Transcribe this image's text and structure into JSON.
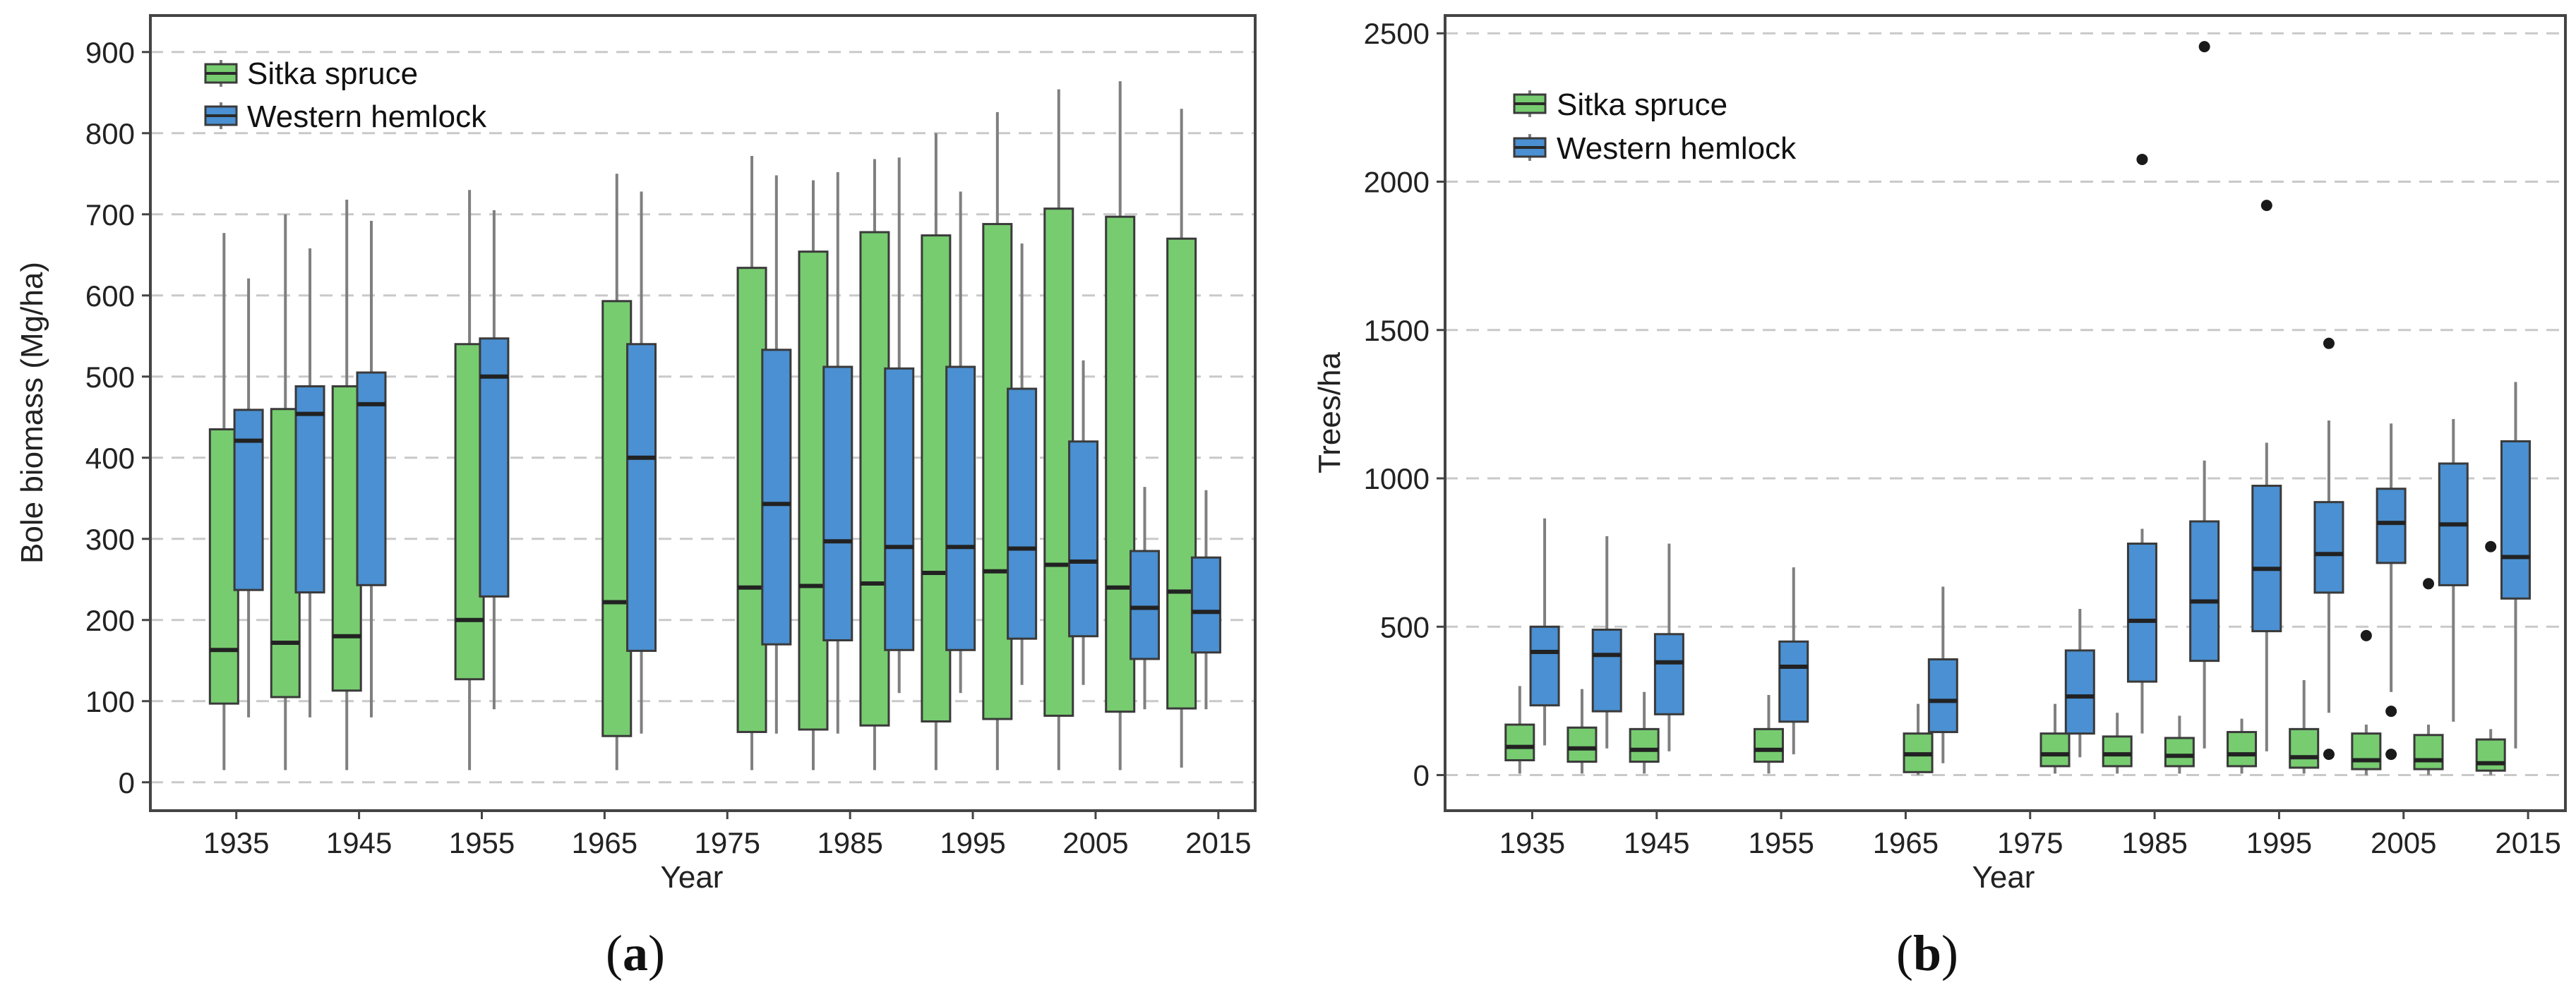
{
  "colors": {
    "sitka_spruce": "#77cc70",
    "western_hemlock": "#4a90d2",
    "box_stroke": "#3a3a3a",
    "whisker": "#7f7f7f",
    "grid": "#c9c9c9",
    "frame": "#444444",
    "outlier": "#1a1a1a"
  },
  "chart_data": [
    {
      "id": "a",
      "type": "box",
      "caption_open": "(",
      "caption_letter": "a",
      "caption_close": ")",
      "xlabel": "Year",
      "ylabel": "Bole biomass (Mg/ha)",
      "xlim": [
        1928,
        2018
      ],
      "ylim": [
        -35,
        945
      ],
      "x_ticks": [
        1935,
        1945,
        1955,
        1965,
        1975,
        1985,
        1995,
        2005,
        2015
      ],
      "y_ticks": [
        0,
        100,
        200,
        300,
        400,
        500,
        600,
        700,
        800,
        900
      ],
      "legend": [
        "Sitka spruce",
        "Western hemlock"
      ],
      "series": [
        {
          "name": "Sitka spruce",
          "boxes": [
            {
              "x": 1934,
              "low": 15,
              "q1": 97,
              "median": 163,
              "q3": 435,
              "high": 677
            },
            {
              "x": 1939,
              "low": 15,
              "q1": 105,
              "median": 172,
              "q3": 460,
              "high": 700
            },
            {
              "x": 1944,
              "low": 15,
              "q1": 113,
              "median": 180,
              "q3": 488,
              "high": 718
            },
            {
              "x": 1954,
              "low": 15,
              "q1": 127,
              "median": 200,
              "q3": 540,
              "high": 730
            },
            {
              "x": 1966,
              "low": 15,
              "q1": 57,
              "median": 222,
              "q3": 593,
              "high": 750
            },
            {
              "x": 1977,
              "low": 15,
              "q1": 62,
              "median": 240,
              "q3": 634,
              "high": 772
            },
            {
              "x": 1982,
              "low": 15,
              "q1": 65,
              "median": 242,
              "q3": 654,
              "high": 742
            },
            {
              "x": 1987,
              "low": 15,
              "q1": 70,
              "median": 245,
              "q3": 678,
              "high": 768
            },
            {
              "x": 1992,
              "low": 15,
              "q1": 75,
              "median": 258,
              "q3": 674,
              "high": 800
            },
            {
              "x": 1997,
              "low": 15,
              "q1": 78,
              "median": 260,
              "q3": 688,
              "high": 826
            },
            {
              "x": 2002,
              "low": 15,
              "q1": 82,
              "median": 268,
              "q3": 707,
              "high": 854
            },
            {
              "x": 2007,
              "low": 15,
              "q1": 87,
              "median": 240,
              "q3": 697,
              "high": 864
            },
            {
              "x": 2012,
              "low": 18,
              "q1": 91,
              "median": 235,
              "q3": 670,
              "high": 830
            }
          ]
        },
        {
          "name": "Western hemlock",
          "boxes": [
            {
              "x": 1936,
              "low": 80,
              "q1": 237,
              "median": 421,
              "q3": 459,
              "high": 621
            },
            {
              "x": 1941,
              "low": 80,
              "q1": 234,
              "median": 454,
              "q3": 488,
              "high": 658
            },
            {
              "x": 1946,
              "low": 80,
              "q1": 243,
              "median": 466,
              "q3": 505,
              "high": 692
            },
            {
              "x": 1956,
              "low": 90,
              "q1": 229,
              "median": 500,
              "q3": 547,
              "high": 705
            },
            {
              "x": 1968,
              "low": 60,
              "q1": 162,
              "median": 400,
              "q3": 540,
              "high": 728
            },
            {
              "x": 1979,
              "low": 60,
              "q1": 170,
              "median": 343,
              "q3": 533,
              "high": 748
            },
            {
              "x": 1984,
              "low": 60,
              "q1": 175,
              "median": 297,
              "q3": 512,
              "high": 752
            },
            {
              "x": 1989,
              "low": 110,
              "q1": 163,
              "median": 290,
              "q3": 510,
              "high": 770
            },
            {
              "x": 1994,
              "low": 110,
              "q1": 163,
              "median": 290,
              "q3": 512,
              "high": 728
            },
            {
              "x": 1999,
              "low": 120,
              "q1": 177,
              "median": 288,
              "q3": 485,
              "high": 664
            },
            {
              "x": 2004,
              "low": 120,
              "q1": 180,
              "median": 272,
              "q3": 420,
              "high": 520
            },
            {
              "x": 2009,
              "low": 90,
              "q1": 152,
              "median": 215,
              "q3": 285,
              "high": 364
            },
            {
              "x": 2014,
              "low": 90,
              "q1": 160,
              "median": 210,
              "q3": 277,
              "high": 360
            }
          ]
        }
      ],
      "outliers": []
    },
    {
      "id": "b",
      "type": "box",
      "caption_open": "(",
      "caption_letter": "b",
      "caption_close": ")",
      "xlabel": "Year",
      "ylabel": "Trees/ha",
      "xlim": [
        1928,
        2018
      ],
      "ylim": [
        -120,
        2560
      ],
      "x_ticks": [
        1935,
        1945,
        1955,
        1965,
        1975,
        1985,
        1995,
        2005,
        2015
      ],
      "y_ticks": [
        0,
        500,
        1000,
        1500,
        2000,
        2500
      ],
      "legend": [
        "Sitka spruce",
        "Western hemlock"
      ],
      "series": [
        {
          "name": "Sitka spruce",
          "boxes": [
            {
              "x": 1934,
              "low": 5,
              "q1": 50,
              "median": 95,
              "q3": 170,
              "high": 300
            },
            {
              "x": 1939,
              "low": 5,
              "q1": 45,
              "median": 90,
              "q3": 160,
              "high": 290
            },
            {
              "x": 1944,
              "low": 5,
              "q1": 45,
              "median": 85,
              "q3": 155,
              "high": 280
            },
            {
              "x": 1954,
              "low": 5,
              "q1": 45,
              "median": 85,
              "q3": 155,
              "high": 270
            },
            {
              "x": 1966,
              "low": 0,
              "q1": 10,
              "median": 70,
              "q3": 140,
              "high": 240
            },
            {
              "x": 1977,
              "low": 5,
              "q1": 30,
              "median": 70,
              "q3": 140,
              "high": 240
            },
            {
              "x": 1982,
              "low": 5,
              "q1": 30,
              "median": 70,
              "q3": 130,
              "high": 210
            },
            {
              "x": 1987,
              "low": 5,
              "q1": 30,
              "median": 65,
              "q3": 125,
              "high": 200
            },
            {
              "x": 1992,
              "low": 5,
              "q1": 30,
              "median": 70,
              "q3": 145,
              "high": 190
            },
            {
              "x": 1997,
              "low": 5,
              "q1": 25,
              "median": 60,
              "q3": 155,
              "high": 320
            },
            {
              "x": 2002,
              "low": 0,
              "q1": 20,
              "median": 50,
              "q3": 140,
              "high": 170
            },
            {
              "x": 2007,
              "low": 0,
              "q1": 20,
              "median": 50,
              "q3": 135,
              "high": 170
            },
            {
              "x": 2012,
              "low": 0,
              "q1": 15,
              "median": 40,
              "q3": 120,
              "high": 155
            }
          ]
        },
        {
          "name": "Western hemlock",
          "boxes": [
            {
              "x": 1936,
              "low": 100,
              "q1": 235,
              "median": 415,
              "q3": 500,
              "high": 865
            },
            {
              "x": 1941,
              "low": 90,
              "q1": 215,
              "median": 405,
              "q3": 490,
              "high": 805
            },
            {
              "x": 1946,
              "low": 80,
              "q1": 205,
              "median": 380,
              "q3": 475,
              "high": 780
            },
            {
              "x": 1956,
              "low": 70,
              "q1": 180,
              "median": 365,
              "q3": 450,
              "high": 700
            },
            {
              "x": 1968,
              "low": 40,
              "q1": 145,
              "median": 250,
              "q3": 390,
              "high": 635
            },
            {
              "x": 1979,
              "low": 60,
              "q1": 140,
              "median": 265,
              "q3": 420,
              "high": 560
            },
            {
              "x": 1984,
              "low": 140,
              "q1": 315,
              "median": 520,
              "q3": 780,
              "high": 830
            },
            {
              "x": 1989,
              "low": 90,
              "q1": 385,
              "median": 585,
              "q3": 855,
              "high": 1060
            },
            {
              "x": 1994,
              "low": 80,
              "q1": 485,
              "median": 695,
              "q3": 975,
              "high": 1120
            },
            {
              "x": 1999,
              "low": 210,
              "q1": 615,
              "median": 745,
              "q3": 920,
              "high": 1195
            },
            {
              "x": 2004,
              "low": 280,
              "q1": 715,
              "median": 850,
              "q3": 965,
              "high": 1185
            },
            {
              "x": 2009,
              "low": 180,
              "q1": 640,
              "median": 845,
              "q3": 1050,
              "high": 1200
            },
            {
              "x": 2014,
              "low": 90,
              "q1": 595,
              "median": 735,
              "q3": 1125,
              "high": 1325
            }
          ]
        }
      ],
      "outliers": [
        {
          "x": 1984,
          "y": 2075
        },
        {
          "x": 1989,
          "y": 2455
        },
        {
          "x": 1994,
          "y": 1920
        },
        {
          "x": 1999,
          "y": 1455
        },
        {
          "x": 1999,
          "y": 70
        },
        {
          "x": 2002,
          "y": 470
        },
        {
          "x": 2004,
          "y": 215
        },
        {
          "x": 2004,
          "y": 70
        },
        {
          "x": 2007,
          "y": 645
        },
        {
          "x": 2012,
          "y": 770
        }
      ]
    }
  ]
}
